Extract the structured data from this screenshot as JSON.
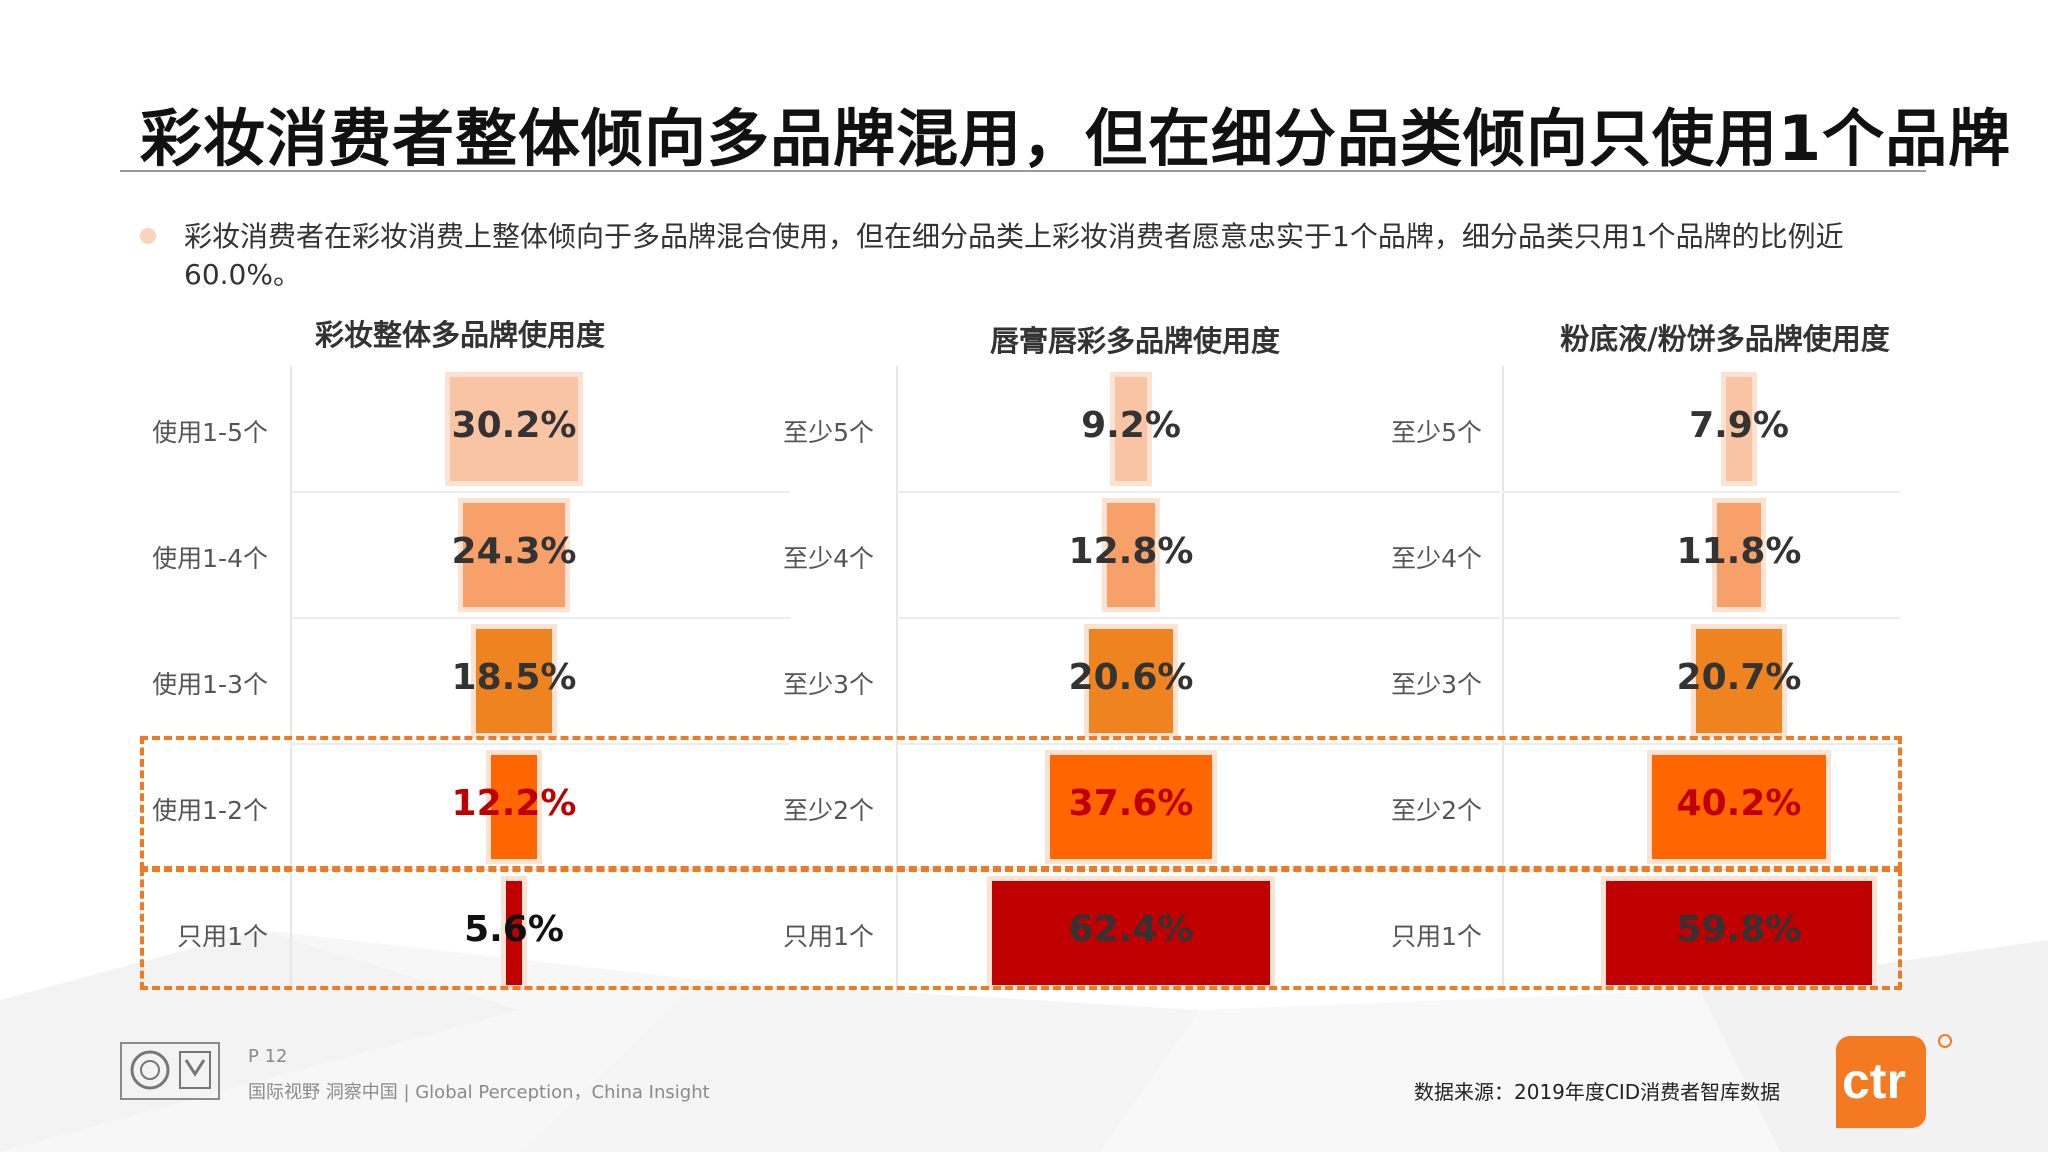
{
  "title": "彩妆消费者整体倾向多品牌混用，但在细分品类倾向只使用1个品牌",
  "bullet": "彩妆消费者在彩妆消费上整体倾向于多品牌混合使用，但在细分品类上彩妆消费者愿意忠实于1个品牌，细分品类只用1个品牌的比例近60.0%。",
  "colors": {
    "level_1": "#f9c4a3",
    "level_2": "#f7a06a",
    "level_3": "#ee8320",
    "level_4": "#ff6600",
    "level_5": "#c00000",
    "highlight": "#f07a23"
  },
  "chart_data": [
    {
      "type": "bar",
      "title": "彩妆整体多品牌使用度",
      "categories": [
        "使用1-5个",
        "使用1-4个",
        "使用1-3个",
        "使用1-2个",
        "只用1个"
      ],
      "values": [
        30.2,
        24.3,
        18.5,
        12.2,
        5.6
      ],
      "labels": [
        "30.2%",
        "24.3%",
        "18.5%",
        "12.2%",
        "5.6%"
      ]
    },
    {
      "type": "bar",
      "title": "唇膏唇彩多品牌使用度",
      "categories": [
        "至少5个",
        "至少4个",
        "至少3个",
        "至少2个",
        "只用1个"
      ],
      "values": [
        9.2,
        12.8,
        20.6,
        37.6,
        62.4
      ],
      "labels": [
        "9.2%",
        "12.8%",
        "20.6%",
        "37.6%",
        "62.4%"
      ]
    },
    {
      "type": "bar",
      "title": "粉底液/粉饼多品牌使用度",
      "categories": [
        "至少5个",
        "至少4个",
        "至少3个",
        "至少2个",
        "只用1个"
      ],
      "values": [
        7.9,
        11.8,
        20.7,
        40.2,
        59.8
      ],
      "labels": [
        "7.9%",
        "11.8%",
        "20.7%",
        "40.2%",
        "59.8%"
      ]
    }
  ],
  "footer": {
    "page": "P 12",
    "slogan": "国际视野  洞察中国 |  Global Perception，China Insight",
    "source": "数据来源：2019年度CID消费者智库数据",
    "logo_text": "ctr",
    "cert_icon": "sgs-ukas-certification-icon"
  }
}
